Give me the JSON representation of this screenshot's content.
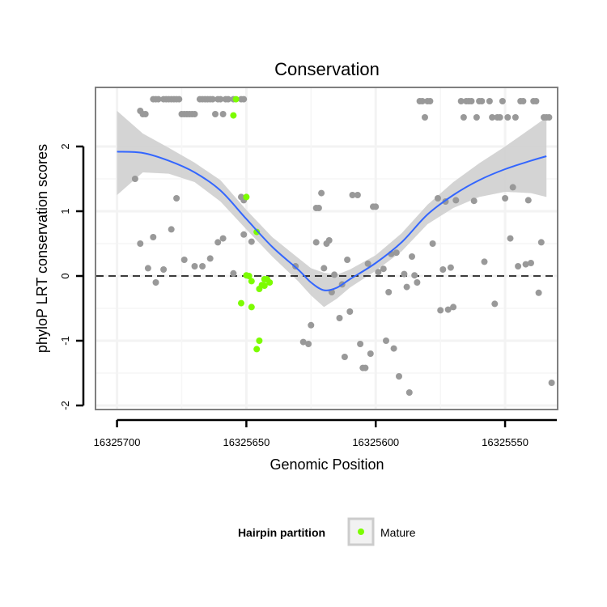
{
  "chart_data": {
    "type": "scatter",
    "title": "Conservation",
    "xlabel": "Genomic Position",
    "ylabel": "phyloP LRT conservation scores",
    "x_reversed": true,
    "xlim": [
      16325708,
      16325530
    ],
    "ylim": [
      -2.05,
      2.9
    ],
    "x_ticks": [
      16325700,
      16325650,
      16325600,
      16325550
    ],
    "x_tick_labels": [
      "16325700",
      "16325650",
      "16325600",
      "16325550"
    ],
    "y_ticks": [
      -2,
      -1,
      0,
      1,
      2
    ],
    "y_tick_labels": [
      "-2",
      "-1",
      "0",
      "1",
      "2"
    ],
    "grid": true,
    "reference_line": {
      "y": 0,
      "style": "dashed"
    },
    "legend": {
      "title": "Hairpin partition",
      "placement": "bottom",
      "entries": [
        {
          "label": "Mature",
          "color": "#7cfc00"
        }
      ]
    },
    "colors": {
      "other": "#999999",
      "mature": "#7cfc00",
      "smooth": "#3366ff",
      "band": "#cccccc"
    },
    "series": [
      {
        "name": "Other",
        "points": [
          [
            16325691,
            2.55
          ],
          [
            16325690,
            2.5
          ],
          [
            16325689,
            2.5
          ],
          [
            16325686,
            2.73
          ],
          [
            16325685,
            2.73
          ],
          [
            16325684,
            2.73
          ],
          [
            16325682,
            2.73
          ],
          [
            16325681,
            2.73
          ],
          [
            16325680,
            2.73
          ],
          [
            16325679,
            2.73
          ],
          [
            16325678,
            2.73
          ],
          [
            16325677,
            2.73
          ],
          [
            16325676,
            2.73
          ],
          [
            16325675,
            2.5
          ],
          [
            16325674,
            2.5
          ],
          [
            16325673,
            2.5
          ],
          [
            16325672,
            2.5
          ],
          [
            16325671,
            2.5
          ],
          [
            16325670,
            2.5
          ],
          [
            16325668,
            2.73
          ],
          [
            16325667,
            2.73
          ],
          [
            16325666,
            2.73
          ],
          [
            16325665,
            2.73
          ],
          [
            16325664,
            2.73
          ],
          [
            16325663,
            2.73
          ],
          [
            16325662,
            2.5
          ],
          [
            16325661,
            2.73
          ],
          [
            16325660,
            2.73
          ],
          [
            16325659,
            2.5
          ],
          [
            16325658,
            2.73
          ],
          [
            16325657,
            2.73
          ],
          [
            16325655,
            2.73
          ],
          [
            16325652,
            2.73
          ],
          [
            16325651,
            2.73
          ],
          [
            16325693,
            1.5
          ],
          [
            16325691,
            0.5
          ],
          [
            16325688,
            0.12
          ],
          [
            16325686,
            0.6
          ],
          [
            16325685,
            -0.1
          ],
          [
            16325682,
            0.1
          ],
          [
            16325679,
            0.72
          ],
          [
            16325677,
            1.2
          ],
          [
            16325674,
            0.25
          ],
          [
            16325670,
            0.15
          ],
          [
            16325667,
            0.15
          ],
          [
            16325664,
            0.27
          ],
          [
            16325661,
            0.52
          ],
          [
            16325659,
            0.58
          ],
          [
            16325655,
            0.04
          ],
          [
            16325652,
            1.22
          ],
          [
            16325651,
            1.17
          ],
          [
            16325651,
            0.64
          ],
          [
            16325648,
            0.53
          ],
          [
            16325631,
            0.15
          ],
          [
            16325628,
            -1.02
          ],
          [
            16325626,
            -1.05
          ],
          [
            16325625,
            -0.76
          ],
          [
            16325623,
            0.52
          ],
          [
            16325623,
            1.05
          ],
          [
            16325622,
            1.05
          ],
          [
            16325621,
            1.28
          ],
          [
            16325620,
            0.12
          ],
          [
            16325619,
            0.5
          ],
          [
            16325618,
            0.55
          ],
          [
            16325617,
            -0.25
          ],
          [
            16325616,
            0.02
          ],
          [
            16325614,
            -0.65
          ],
          [
            16325613,
            -0.13
          ],
          [
            16325612,
            -1.25
          ],
          [
            16325611,
            0.25
          ],
          [
            16325610,
            -0.55
          ],
          [
            16325609,
            1.25
          ],
          [
            16325607,
            1.25
          ],
          [
            16325606,
            -1.05
          ],
          [
            16325605,
            -1.42
          ],
          [
            16325604,
            -1.42
          ],
          [
            16325603,
            0.19
          ],
          [
            16325602,
            -1.2
          ],
          [
            16325601,
            1.07
          ],
          [
            16325600,
            1.07
          ],
          [
            16325599,
            0.06
          ],
          [
            16325597,
            0.11
          ],
          [
            16325596,
            -1.0
          ],
          [
            16325595,
            -0.25
          ],
          [
            16325594,
            0.34
          ],
          [
            16325593,
            -1.12
          ],
          [
            16325592,
            0.36
          ],
          [
            16325591,
            -1.55
          ],
          [
            16325589,
            0.03
          ],
          [
            16325588,
            -0.17
          ],
          [
            16325587,
            -1.8
          ],
          [
            16325586,
            0.3
          ],
          [
            16325585,
            0.01
          ],
          [
            16325584,
            -0.1
          ],
          [
            16325583,
            2.7
          ],
          [
            16325582,
            2.7
          ],
          [
            16325581,
            2.45
          ],
          [
            16325580,
            2.7
          ],
          [
            16325579,
            2.7
          ],
          [
            16325578,
            0.5
          ],
          [
            16325576,
            1.2
          ],
          [
            16325575,
            -0.53
          ],
          [
            16325574,
            0.1
          ],
          [
            16325573,
            1.15
          ],
          [
            16325572,
            -0.52
          ],
          [
            16325571,
            0.13
          ],
          [
            16325570,
            -0.48
          ],
          [
            16325569,
            1.17
          ],
          [
            16325567,
            2.7
          ],
          [
            16325566,
            2.45
          ],
          [
            16325565,
            2.7
          ],
          [
            16325564,
            2.7
          ],
          [
            16325563,
            2.7
          ],
          [
            16325562,
            1.16
          ],
          [
            16325561,
            2.45
          ],
          [
            16325560,
            2.7
          ],
          [
            16325559,
            2.7
          ],
          [
            16325558,
            0.22
          ],
          [
            16325556,
            2.7
          ],
          [
            16325555,
            2.45
          ],
          [
            16325554,
            -0.43
          ],
          [
            16325553,
            2.45
          ],
          [
            16325552,
            2.45
          ],
          [
            16325551,
            2.7
          ],
          [
            16325550,
            1.2
          ],
          [
            16325549,
            2.45
          ],
          [
            16325548,
            0.58
          ],
          [
            16325547,
            1.37
          ],
          [
            16325546,
            2.45
          ],
          [
            16325545,
            0.15
          ],
          [
            16325544,
            2.7
          ],
          [
            16325543,
            2.7
          ],
          [
            16325542,
            0.18
          ],
          [
            16325541,
            1.17
          ],
          [
            16325540,
            0.2
          ],
          [
            16325539,
            2.7
          ],
          [
            16325538,
            2.7
          ],
          [
            16325537,
            -0.26
          ],
          [
            16325536,
            0.52
          ],
          [
            16325535,
            2.45
          ],
          [
            16325534,
            2.45
          ],
          [
            16325533,
            2.45
          ],
          [
            16325532,
            -1.65
          ]
        ]
      },
      {
        "name": "Mature",
        "points": [
          [
            16325654,
            2.73
          ],
          [
            16325655,
            2.48
          ],
          [
            16325650,
            1.22
          ],
          [
            16325646,
            0.68
          ],
          [
            16325650,
            0.01
          ],
          [
            16325649,
            0.0
          ],
          [
            16325648,
            -0.08
          ],
          [
            16325652,
            -0.42
          ],
          [
            16325648,
            -0.48
          ],
          [
            16325645,
            -0.2
          ],
          [
            16325643,
            -0.05
          ],
          [
            16325642,
            -0.05
          ],
          [
            16325641,
            -0.1
          ],
          [
            16325644,
            -0.14
          ],
          [
            16325643,
            -0.15
          ],
          [
            16325645,
            -1.0
          ],
          [
            16325646,
            -1.13
          ]
        ]
      }
    ],
    "smooth_line": {
      "x": [
        16325700,
        16325690,
        16325680,
        16325670,
        16325660,
        16325650,
        16325640,
        16325630,
        16325625,
        16325620,
        16325615,
        16325610,
        16325600,
        16325590,
        16325580,
        16325570,
        16325560,
        16325550,
        16325540,
        16325534
      ],
      "y": [
        1.92,
        1.9,
        1.78,
        1.6,
        1.32,
        0.88,
        0.45,
        0.1,
        -0.1,
        -0.22,
        -0.18,
        -0.05,
        0.2,
        0.52,
        0.95,
        1.25,
        1.48,
        1.65,
        1.78,
        1.85
      ],
      "lower": [
        1.25,
        1.6,
        1.58,
        1.45,
        1.15,
        0.72,
        0.3,
        -0.08,
        -0.3,
        -0.48,
        -0.35,
        -0.18,
        0.08,
        0.38,
        0.8,
        1.05,
        1.22,
        1.3,
        1.28,
        1.22
      ],
      "upper": [
        2.55,
        2.2,
        1.98,
        1.75,
        1.48,
        1.02,
        0.6,
        0.28,
        0.12,
        0.05,
        0.02,
        0.1,
        0.32,
        0.66,
        1.1,
        1.45,
        1.74,
        2.0,
        2.28,
        2.45
      ]
    }
  }
}
